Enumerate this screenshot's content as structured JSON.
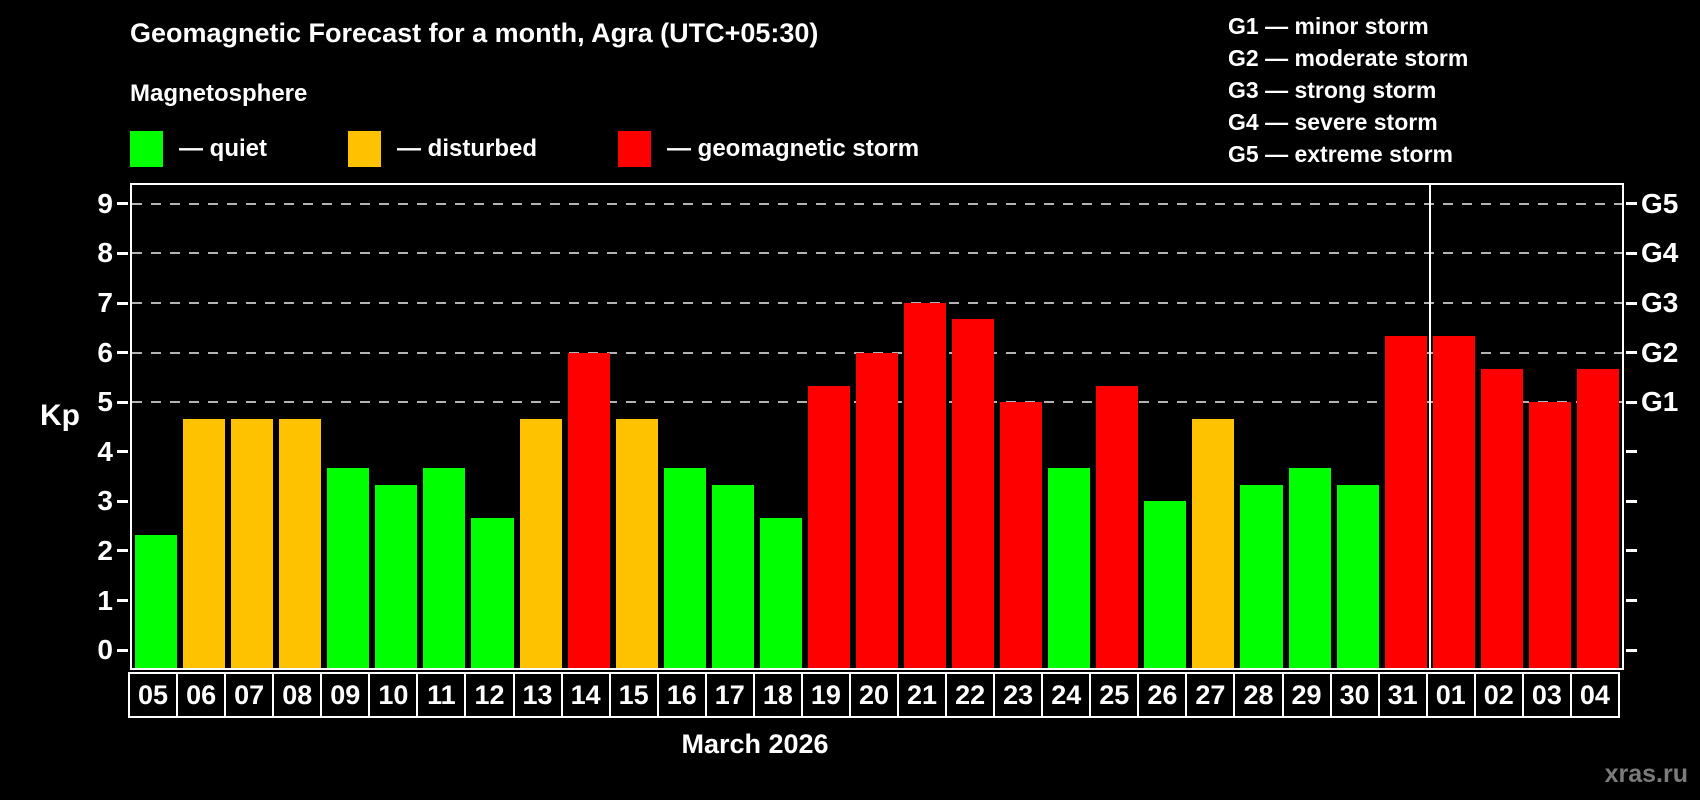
{
  "title": "Geomagnetic Forecast for a month, Agra (UTC+05:30)",
  "subtitle": "Magnetosphere",
  "watermark": "xras.ru",
  "legend": {
    "items": [
      {
        "name": "quiet",
        "label": "— quiet",
        "color": "#00ff00"
      },
      {
        "name": "disturbed",
        "label": "— disturbed",
        "color": "#ffc200"
      },
      {
        "name": "storm",
        "label": "— geomagnetic storm",
        "color": "#ff0000"
      }
    ]
  },
  "g_legend": {
    "lines": [
      "G1 — minor storm",
      "G2 — moderate storm",
      "G3 — strong storm",
      "G4 — severe storm",
      "G5 — extreme storm"
    ]
  },
  "chart_data": {
    "type": "bar",
    "title": "Geomagnetic Forecast for a month, Agra (UTC+05:30)",
    "xlabel": "March 2026",
    "ylabel": "Kp",
    "ylim": [
      0,
      9
    ],
    "grid": "dashed horizontal lines at Kp 5,6,7,8,9",
    "gridlines_kp": [
      5,
      6,
      7,
      8,
      9
    ],
    "y_ticks": [
      0,
      1,
      2,
      3,
      4,
      5,
      6,
      7,
      8,
      9
    ],
    "right_axis": [
      {
        "kp": 5,
        "label": "G1"
      },
      {
        "kp": 6,
        "label": "G2"
      },
      {
        "kp": 7,
        "label": "G3"
      },
      {
        "kp": 8,
        "label": "G4"
      },
      {
        "kp": 9,
        "label": "G5"
      }
    ],
    "categories": [
      "05",
      "06",
      "07",
      "08",
      "09",
      "10",
      "11",
      "12",
      "13",
      "14",
      "15",
      "16",
      "17",
      "18",
      "19",
      "20",
      "21",
      "22",
      "23",
      "24",
      "25",
      "26",
      "27",
      "28",
      "29",
      "30",
      "31",
      "01",
      "02",
      "03",
      "04"
    ],
    "values": [
      2.33,
      4.67,
      4.67,
      4.67,
      3.67,
      3.33,
      3.67,
      2.67,
      4.67,
      6.0,
      4.67,
      3.67,
      3.33,
      2.67,
      5.33,
      6.0,
      7.0,
      6.67,
      5.0,
      3.67,
      5.33,
      3.0,
      4.67,
      3.33,
      3.67,
      3.33,
      6.33,
      6.33,
      5.67,
      5.0,
      5.67
    ],
    "states": [
      "quiet",
      "disturbed",
      "disturbed",
      "disturbed",
      "quiet",
      "quiet",
      "quiet",
      "quiet",
      "disturbed",
      "storm",
      "disturbed",
      "quiet",
      "quiet",
      "quiet",
      "storm",
      "storm",
      "storm",
      "storm",
      "storm",
      "quiet",
      "storm",
      "quiet",
      "disturbed",
      "quiet",
      "quiet",
      "quiet",
      "storm",
      "storm",
      "storm",
      "storm",
      "storm"
    ],
    "colors": {
      "quiet": "#00ff00",
      "disturbed": "#ffc200",
      "storm": "#ff0000"
    },
    "month_boundary_index": 27,
    "month_label": "March 2026"
  }
}
